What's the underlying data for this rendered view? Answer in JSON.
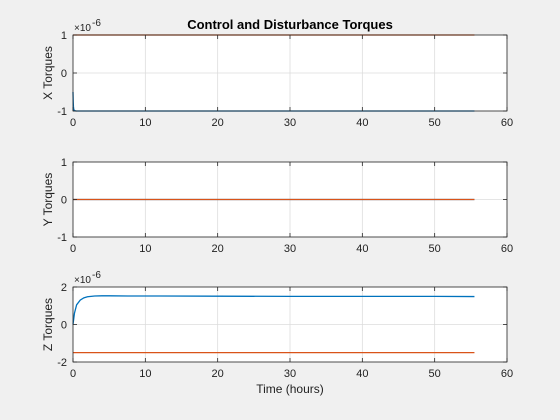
{
  "chart_data": [
    {
      "type": "line",
      "title": "Control and Disturbance Torques",
      "ylabel": "X Torques",
      "xlabel": "",
      "y_exponent_label": "×10",
      "y_exponent_power": "-6",
      "xlim": [
        0,
        60
      ],
      "ylim": [
        -1,
        1
      ],
      "xticks": [
        "0",
        "10",
        "20",
        "30",
        "40",
        "50",
        "60"
      ],
      "yticks": [
        "-1",
        "0",
        "1"
      ],
      "grid": true,
      "colors": [
        "#0072bd",
        "#d95319"
      ],
      "series": [
        {
          "x": [
            0,
            0.03,
            0.06,
            0.1,
            0.15,
            0.25,
            0.4,
            0.6,
            1,
            2,
            5,
            10,
            20,
            30,
            40,
            50,
            55.5
          ],
          "y": [
            -0.5,
            -0.75,
            -0.88,
            -0.95,
            -0.98,
            -0.99,
            -1.0,
            -1.0,
            -1.0,
            -1.0,
            -1.0,
            -1.0,
            -1.0,
            -1.0,
            -1.0,
            -1.0,
            -1.0
          ]
        },
        {
          "x": [
            0,
            55.5
          ],
          "y": [
            1.0,
            1.0
          ]
        }
      ]
    },
    {
      "type": "line",
      "title": "",
      "ylabel": "Y Torques",
      "xlabel": "",
      "xlim": [
        0,
        60
      ],
      "ylim": [
        -1,
        1
      ],
      "xticks": [
        "0",
        "10",
        "20",
        "30",
        "40",
        "50",
        "60"
      ],
      "yticks": [
        "-1",
        "0",
        "1"
      ],
      "grid": true,
      "colors": [
        "#0072bd",
        "#d95319"
      ],
      "series": [
        {
          "x": [
            0,
            55.5
          ],
          "y": [
            0,
            0
          ]
        },
        {
          "x": [
            0,
            55.5
          ],
          "y": [
            0,
            0
          ]
        }
      ]
    },
    {
      "type": "line",
      "title": "",
      "ylabel": "Z Torques",
      "xlabel": "Time (hours)",
      "y_exponent_label": "×10",
      "y_exponent_power": "-6",
      "xlim": [
        0,
        60
      ],
      "ylim": [
        -2,
        2
      ],
      "xticks": [
        "0",
        "10",
        "20",
        "30",
        "40",
        "50",
        "60"
      ],
      "yticks": [
        "-2",
        "0",
        "2"
      ],
      "grid": true,
      "colors": [
        "#0072bd",
        "#d95319"
      ],
      "series": [
        {
          "x": [
            0,
            0.2,
            0.5,
            1,
            1.5,
            2,
            3,
            4,
            5,
            8,
            12,
            20,
            30,
            40,
            50,
            55.5
          ],
          "y": [
            0,
            0.6,
            1.05,
            1.3,
            1.42,
            1.48,
            1.52,
            1.53,
            1.53,
            1.52,
            1.52,
            1.51,
            1.5,
            1.5,
            1.5,
            1.49
          ]
        },
        {
          "x": [
            0,
            55.5
          ],
          "y": [
            -1.5,
            -1.5
          ]
        }
      ]
    }
  ]
}
